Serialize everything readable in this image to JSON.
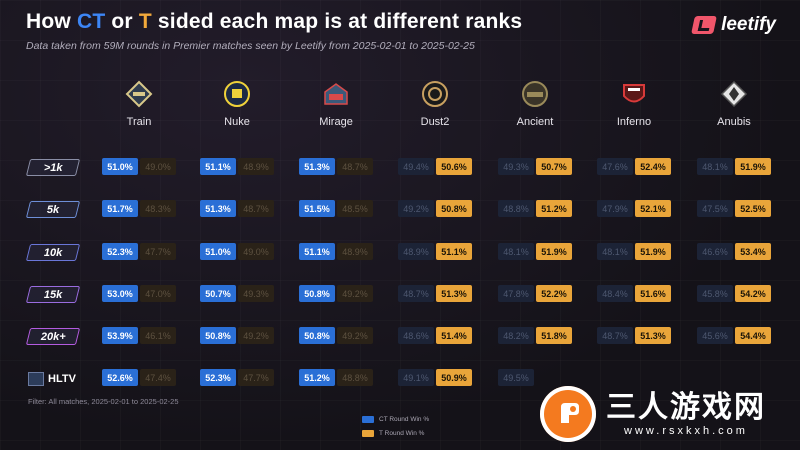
{
  "header": {
    "title_parts": [
      "How ",
      "CT",
      " or ",
      "T",
      " sided each map is at different ranks"
    ],
    "subtitle": "Data taken from 59M rounds in Premier matches seen by Leetify from 2025-02-01 to 2025-02-25",
    "brand": "leetify"
  },
  "colors": {
    "ct": "#2a6fd6",
    "t": "#e9a53a",
    "ct_title": "#3d86f5",
    "t_title": "#f2a93b"
  },
  "chart_data": {
    "type": "table",
    "title": "How CT or T sided each map is at different ranks",
    "maps": [
      "Train",
      "Nuke",
      "Mirage",
      "Dust2",
      "Ancient",
      "Inferno",
      "Anubis"
    ],
    "map_icons": [
      "train-badge-icon",
      "nuke-badge-icon",
      "mirage-badge-icon",
      "dust2-badge-icon",
      "ancient-badge-icon",
      "inferno-badge-icon",
      "anubis-badge-icon"
    ],
    "ranks": [
      ">1k",
      "5k",
      "10k",
      "15k",
      "20k+",
      "HLTV"
    ],
    "rank_colors": [
      "#8a8ea6",
      "#6e8fd8",
      "#6a76d8",
      "#9a6ce0",
      "#b45be0",
      "#ffffff"
    ],
    "series": [
      {
        "name": "CT Round Win %",
        "values": [
          [
            "51.0%",
            "51.1%",
            "51.3%",
            "49.4%",
            "49.3%",
            "47.6%",
            "48.1%"
          ],
          [
            "51.7%",
            "51.3%",
            "51.5%",
            "49.2%",
            "48.8%",
            "47.9%",
            "47.5%"
          ],
          [
            "52.3%",
            "51.0%",
            "51.1%",
            "48.9%",
            "48.1%",
            "48.1%",
            "46.6%"
          ],
          [
            "53.0%",
            "50.7%",
            "50.8%",
            "48.7%",
            "47.8%",
            "48.4%",
            "45.8%"
          ],
          [
            "53.9%",
            "50.8%",
            "50.8%",
            "48.6%",
            "48.2%",
            "48.7%",
            "45.6%"
          ],
          [
            "52.6%",
            "52.3%",
            "51.2%",
            "49.1%",
            "49.5%",
            "",
            ""
          ]
        ]
      },
      {
        "name": "T Round Win %",
        "values": [
          [
            "49.0%",
            "48.9%",
            "48.7%",
            "50.6%",
            "50.7%",
            "52.4%",
            "51.9%"
          ],
          [
            "48.3%",
            "48.7%",
            "48.5%",
            "50.8%",
            "51.2%",
            "52.1%",
            "52.5%"
          ],
          [
            "47.7%",
            "49.0%",
            "48.9%",
            "51.1%",
            "51.9%",
            "51.9%",
            "53.4%"
          ],
          [
            "47.0%",
            "49.3%",
            "49.2%",
            "51.3%",
            "52.2%",
            "51.6%",
            "54.2%"
          ],
          [
            "46.1%",
            "49.2%",
            "49.2%",
            "51.4%",
            "51.8%",
            "51.3%",
            "54.4%"
          ],
          [
            "47.4%",
            "47.7%",
            "48.8%",
            "50.9%",
            "",
            "",
            ""
          ]
        ]
      }
    ],
    "legend": [
      "CT Round Win %",
      "T Round Win %"
    ]
  },
  "filter_text": "Filter: All matches, 2025-02-01 to 2025-02-25",
  "watermark": {
    "chinese": "三人游戏网",
    "url": "www.rsxkxh.com"
  }
}
